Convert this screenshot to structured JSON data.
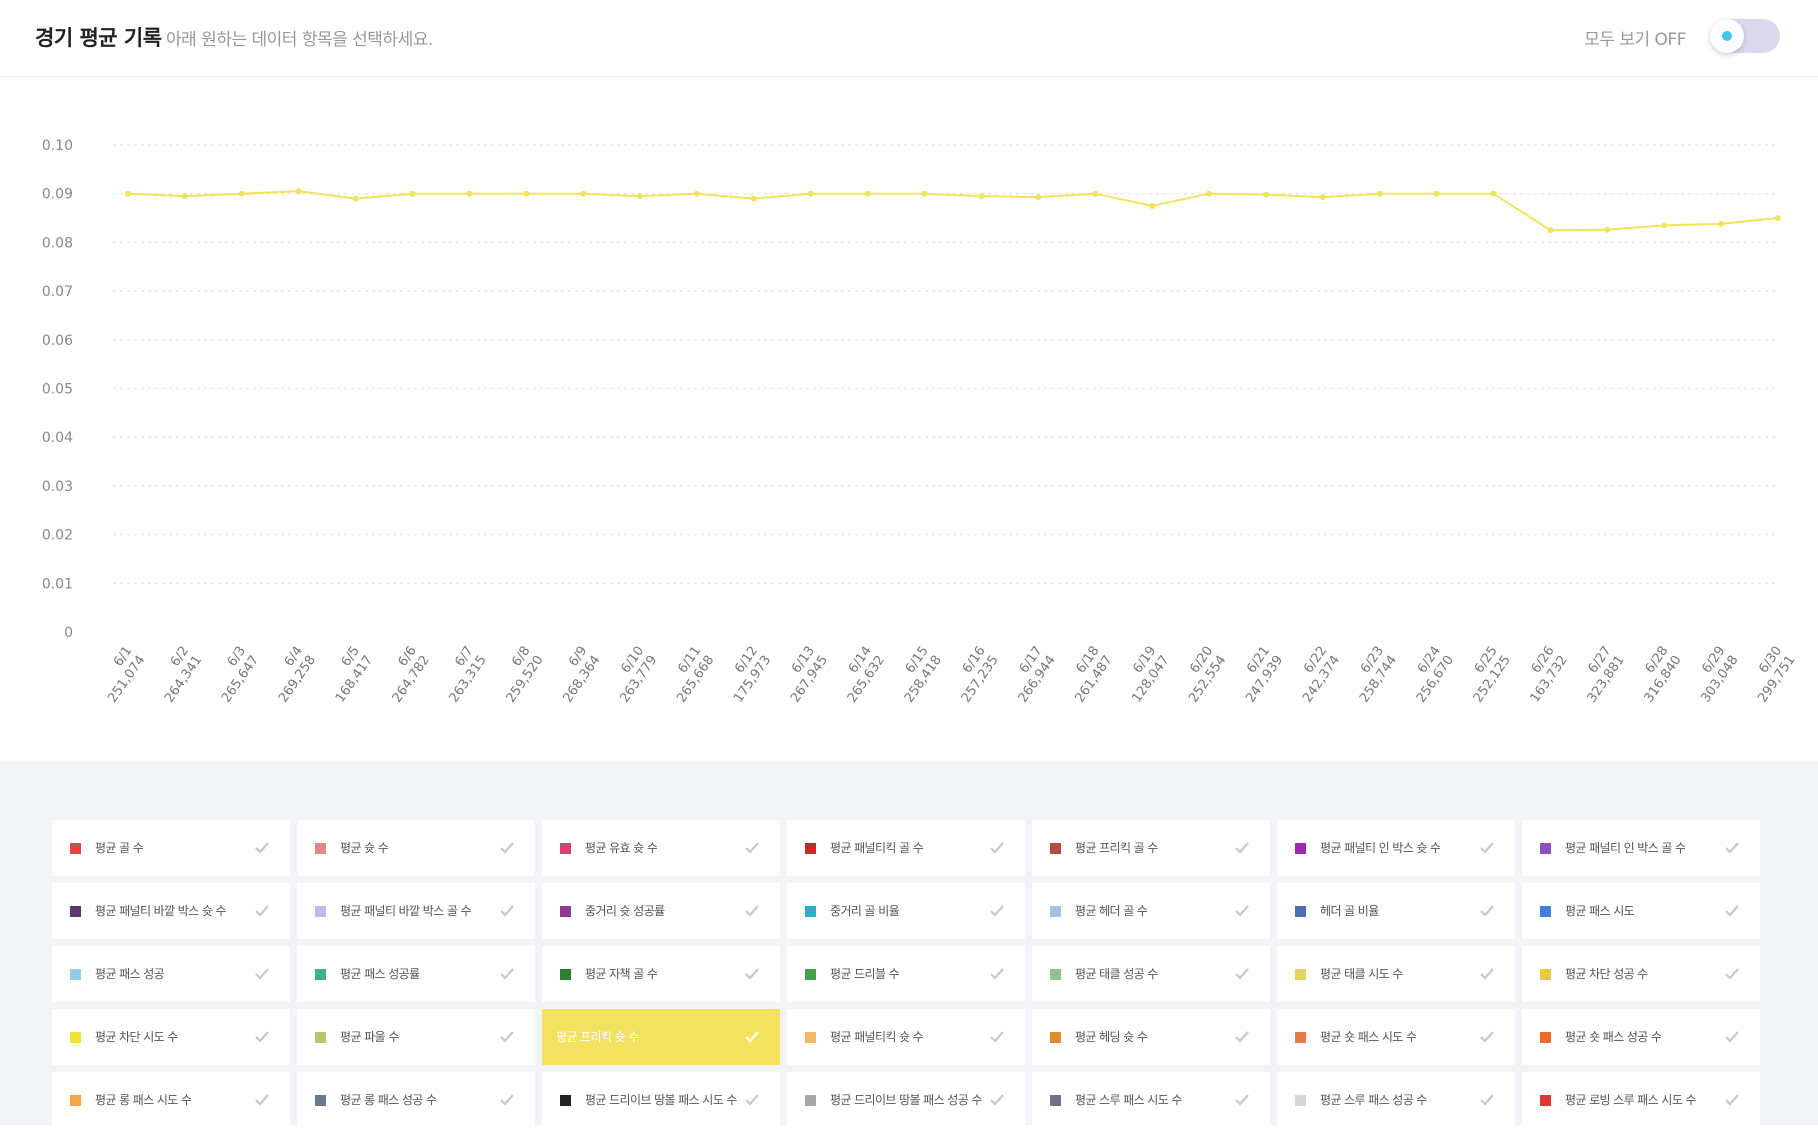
{
  "header": {
    "title": "경기 평균 기록",
    "subtitle": "아래 원하는 데이터 항목을 선택하세요.",
    "toggle_label": "모두 보기 OFF"
  },
  "chart_data": {
    "type": "line",
    "title": "",
    "xlabel": "",
    "ylabel": "",
    "ylim": [
      0,
      0.1
    ],
    "yticks": [
      "0",
      "0.01",
      "0.02",
      "0.03",
      "0.04",
      "0.05",
      "0.06",
      "0.07",
      "0.08",
      "0.09",
      "0.10"
    ],
    "grid": true,
    "categories": [
      {
        "date": "6/1",
        "id": "251,074"
      },
      {
        "date": "6/2",
        "id": "264,341"
      },
      {
        "date": "6/3",
        "id": "265,647"
      },
      {
        "date": "6/4",
        "id": "269,258"
      },
      {
        "date": "6/5",
        "id": "168,417"
      },
      {
        "date": "6/6",
        "id": "264,782"
      },
      {
        "date": "6/7",
        "id": "263,315"
      },
      {
        "date": "6/8",
        "id": "259,520"
      },
      {
        "date": "6/9",
        "id": "268,364"
      },
      {
        "date": "6/10",
        "id": "263,779"
      },
      {
        "date": "6/11",
        "id": "265,668"
      },
      {
        "date": "6/12",
        "id": "175,973"
      },
      {
        "date": "6/13",
        "id": "267,945"
      },
      {
        "date": "6/14",
        "id": "265,632"
      },
      {
        "date": "6/15",
        "id": "258,418"
      },
      {
        "date": "6/16",
        "id": "257,235"
      },
      {
        "date": "6/17",
        "id": "266,944"
      },
      {
        "date": "6/18",
        "id": "261,487"
      },
      {
        "date": "6/19",
        "id": "128,047"
      },
      {
        "date": "6/20",
        "id": "252,554"
      },
      {
        "date": "6/21",
        "id": "247,939"
      },
      {
        "date": "6/22",
        "id": "242,374"
      },
      {
        "date": "6/23",
        "id": "258,744"
      },
      {
        "date": "6/24",
        "id": "256,670"
      },
      {
        "date": "6/25",
        "id": "252,125"
      },
      {
        "date": "6/26",
        "id": "163,732"
      },
      {
        "date": "6/27",
        "id": "323,881"
      },
      {
        "date": "6/28",
        "id": "316,840"
      },
      {
        "date": "6/29",
        "id": "303,048"
      },
      {
        "date": "6/30",
        "id": "299,751"
      }
    ],
    "series": [
      {
        "name": "평균 프리킥 슛 수",
        "color": "#f3e25f",
        "values": [
          0.09,
          0.0895,
          0.09,
          0.0905,
          0.089,
          0.09,
          0.09,
          0.09,
          0.09,
          0.0895,
          0.09,
          0.089,
          0.09,
          0.09,
          0.09,
          0.0895,
          0.0893,
          0.09,
          0.0875,
          0.09,
          0.0898,
          0.0893,
          0.09,
          0.09,
          0.09,
          0.0825,
          0.0826,
          0.0835,
          0.0838,
          0.085
        ]
      }
    ]
  },
  "legend": {
    "items": [
      {
        "label": "평균 골 수",
        "color": "#e04545",
        "active": false
      },
      {
        "label": "평균 슛 수",
        "color": "#e08888",
        "active": false
      },
      {
        "label": "평균 유효 슛 수",
        "color": "#d94170",
        "active": false
      },
      {
        "label": "평균 패널티킥 골 수",
        "color": "#c62828",
        "active": false
      },
      {
        "label": "평균 프리킥 골 수",
        "color": "#b84a3e",
        "active": false
      },
      {
        "label": "평균 패널티 인 박스 슛 수",
        "color": "#9c27b0",
        "active": false
      },
      {
        "label": "평균 패널티 인 박스 골 수",
        "color": "#8e4fc0",
        "active": false
      },
      {
        "label": "평균 패널티 바깥 박스 슛 수",
        "color": "#5d3a6e",
        "active": false
      },
      {
        "label": "평균 패널티 바깥 박스 골 수",
        "color": "#c9b6f0",
        "active": false
      },
      {
        "label": "중거리 슛 성공률",
        "color": "#8e3a8f",
        "active": false
      },
      {
        "label": "중거리 골 비율",
        "color": "#2eaec5",
        "active": false
      },
      {
        "label": "평균 헤더 골 수",
        "color": "#9cc3e8",
        "active": false
      },
      {
        "label": "헤더 골 비율",
        "color": "#4a6fb5",
        "active": false
      },
      {
        "label": "평균 패스 시도",
        "color": "#3f7fe0",
        "active": false
      },
      {
        "label": "평균 패스 성공",
        "color": "#8fcde8",
        "active": false
      },
      {
        "label": "평균 패스 성공률",
        "color": "#3fb08c",
        "active": false
      },
      {
        "label": "평균 자책 골 수",
        "color": "#2e7d32",
        "active": false
      },
      {
        "label": "평균 드리블 수",
        "color": "#43a047",
        "active": false
      },
      {
        "label": "평균 태클 성공 수",
        "color": "#8fc48f",
        "active": false
      },
      {
        "label": "평균 태클 시도 수",
        "color": "#e3d560",
        "active": false
      },
      {
        "label": "평균 차단 성공 수",
        "color": "#ecc93a",
        "active": false
      },
      {
        "label": "평균 차단 시도 수",
        "color": "#efe23c",
        "active": false
      },
      {
        "label": "평균 파울 수",
        "color": "#bfc26a",
        "active": false
      },
      {
        "label": "평균 프리킥 슛 수",
        "color": "#f3e25f",
        "active": true
      },
      {
        "label": "평균 패널티킥 슛 수",
        "color": "#f0b860",
        "active": false
      },
      {
        "label": "평균 헤딩 슛 수",
        "color": "#e08a2e",
        "active": false
      },
      {
        "label": "평균 숏 패스 시도 수",
        "color": "#e8774a",
        "active": false
      },
      {
        "label": "평균 숏 패스 성공 수",
        "color": "#ee6a2a",
        "active": false
      },
      {
        "label": "평균 롱 패스 시도 수",
        "color": "#f0a840",
        "active": false
      },
      {
        "label": "평균 롱 패스 성공 수",
        "color": "#6b7890",
        "active": false
      },
      {
        "label": "평균 드리이브 땅볼 패스 시도 수",
        "color": "#222222",
        "active": false
      },
      {
        "label": "평균 드리이브 땅볼 패스 성공 수",
        "color": "#a8a8a8",
        "active": false
      },
      {
        "label": "평균 스루 패스 시도 수",
        "color": "#6b7480",
        "active": false
      },
      {
        "label": "평균 스루 패스 성공 수",
        "color": "#d6d6d6",
        "active": false
      },
      {
        "label": "평균 로빙 스루 패스 시도 수",
        "color": "#e0363a",
        "active": false
      }
    ]
  }
}
